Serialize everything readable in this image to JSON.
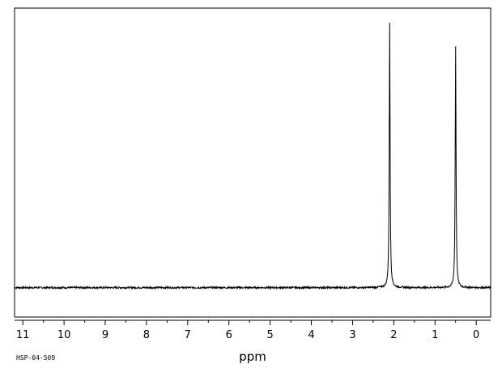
{
  "chart_data": {
    "type": "line",
    "title": "",
    "xlabel": "ppm",
    "ylabel": "",
    "xlim": [
      11.2,
      -0.35
    ],
    "x_reversed": true,
    "ylim": [
      0,
      1
    ],
    "xticks": [
      11,
      10,
      9,
      8,
      7,
      6,
      5,
      4,
      3,
      2,
      1,
      0
    ],
    "xtick_labels": [
      "11",
      "10",
      "9",
      "8",
      "7",
      "6",
      "5",
      "4",
      "3",
      "2",
      "1",
      "0"
    ],
    "minor_tick_step": 0.5,
    "grid": false,
    "legend": "none",
    "baseline": 0.1,
    "series": [
      {
        "peaks": [
          {
            "x": 2.1,
            "y": 1.0
          },
          {
            "x": 0.5,
            "y": 0.92
          }
        ]
      }
    ],
    "footnote": "HSP-04-509"
  },
  "colors": {
    "line": "#000000",
    "background": "#ffffff"
  }
}
